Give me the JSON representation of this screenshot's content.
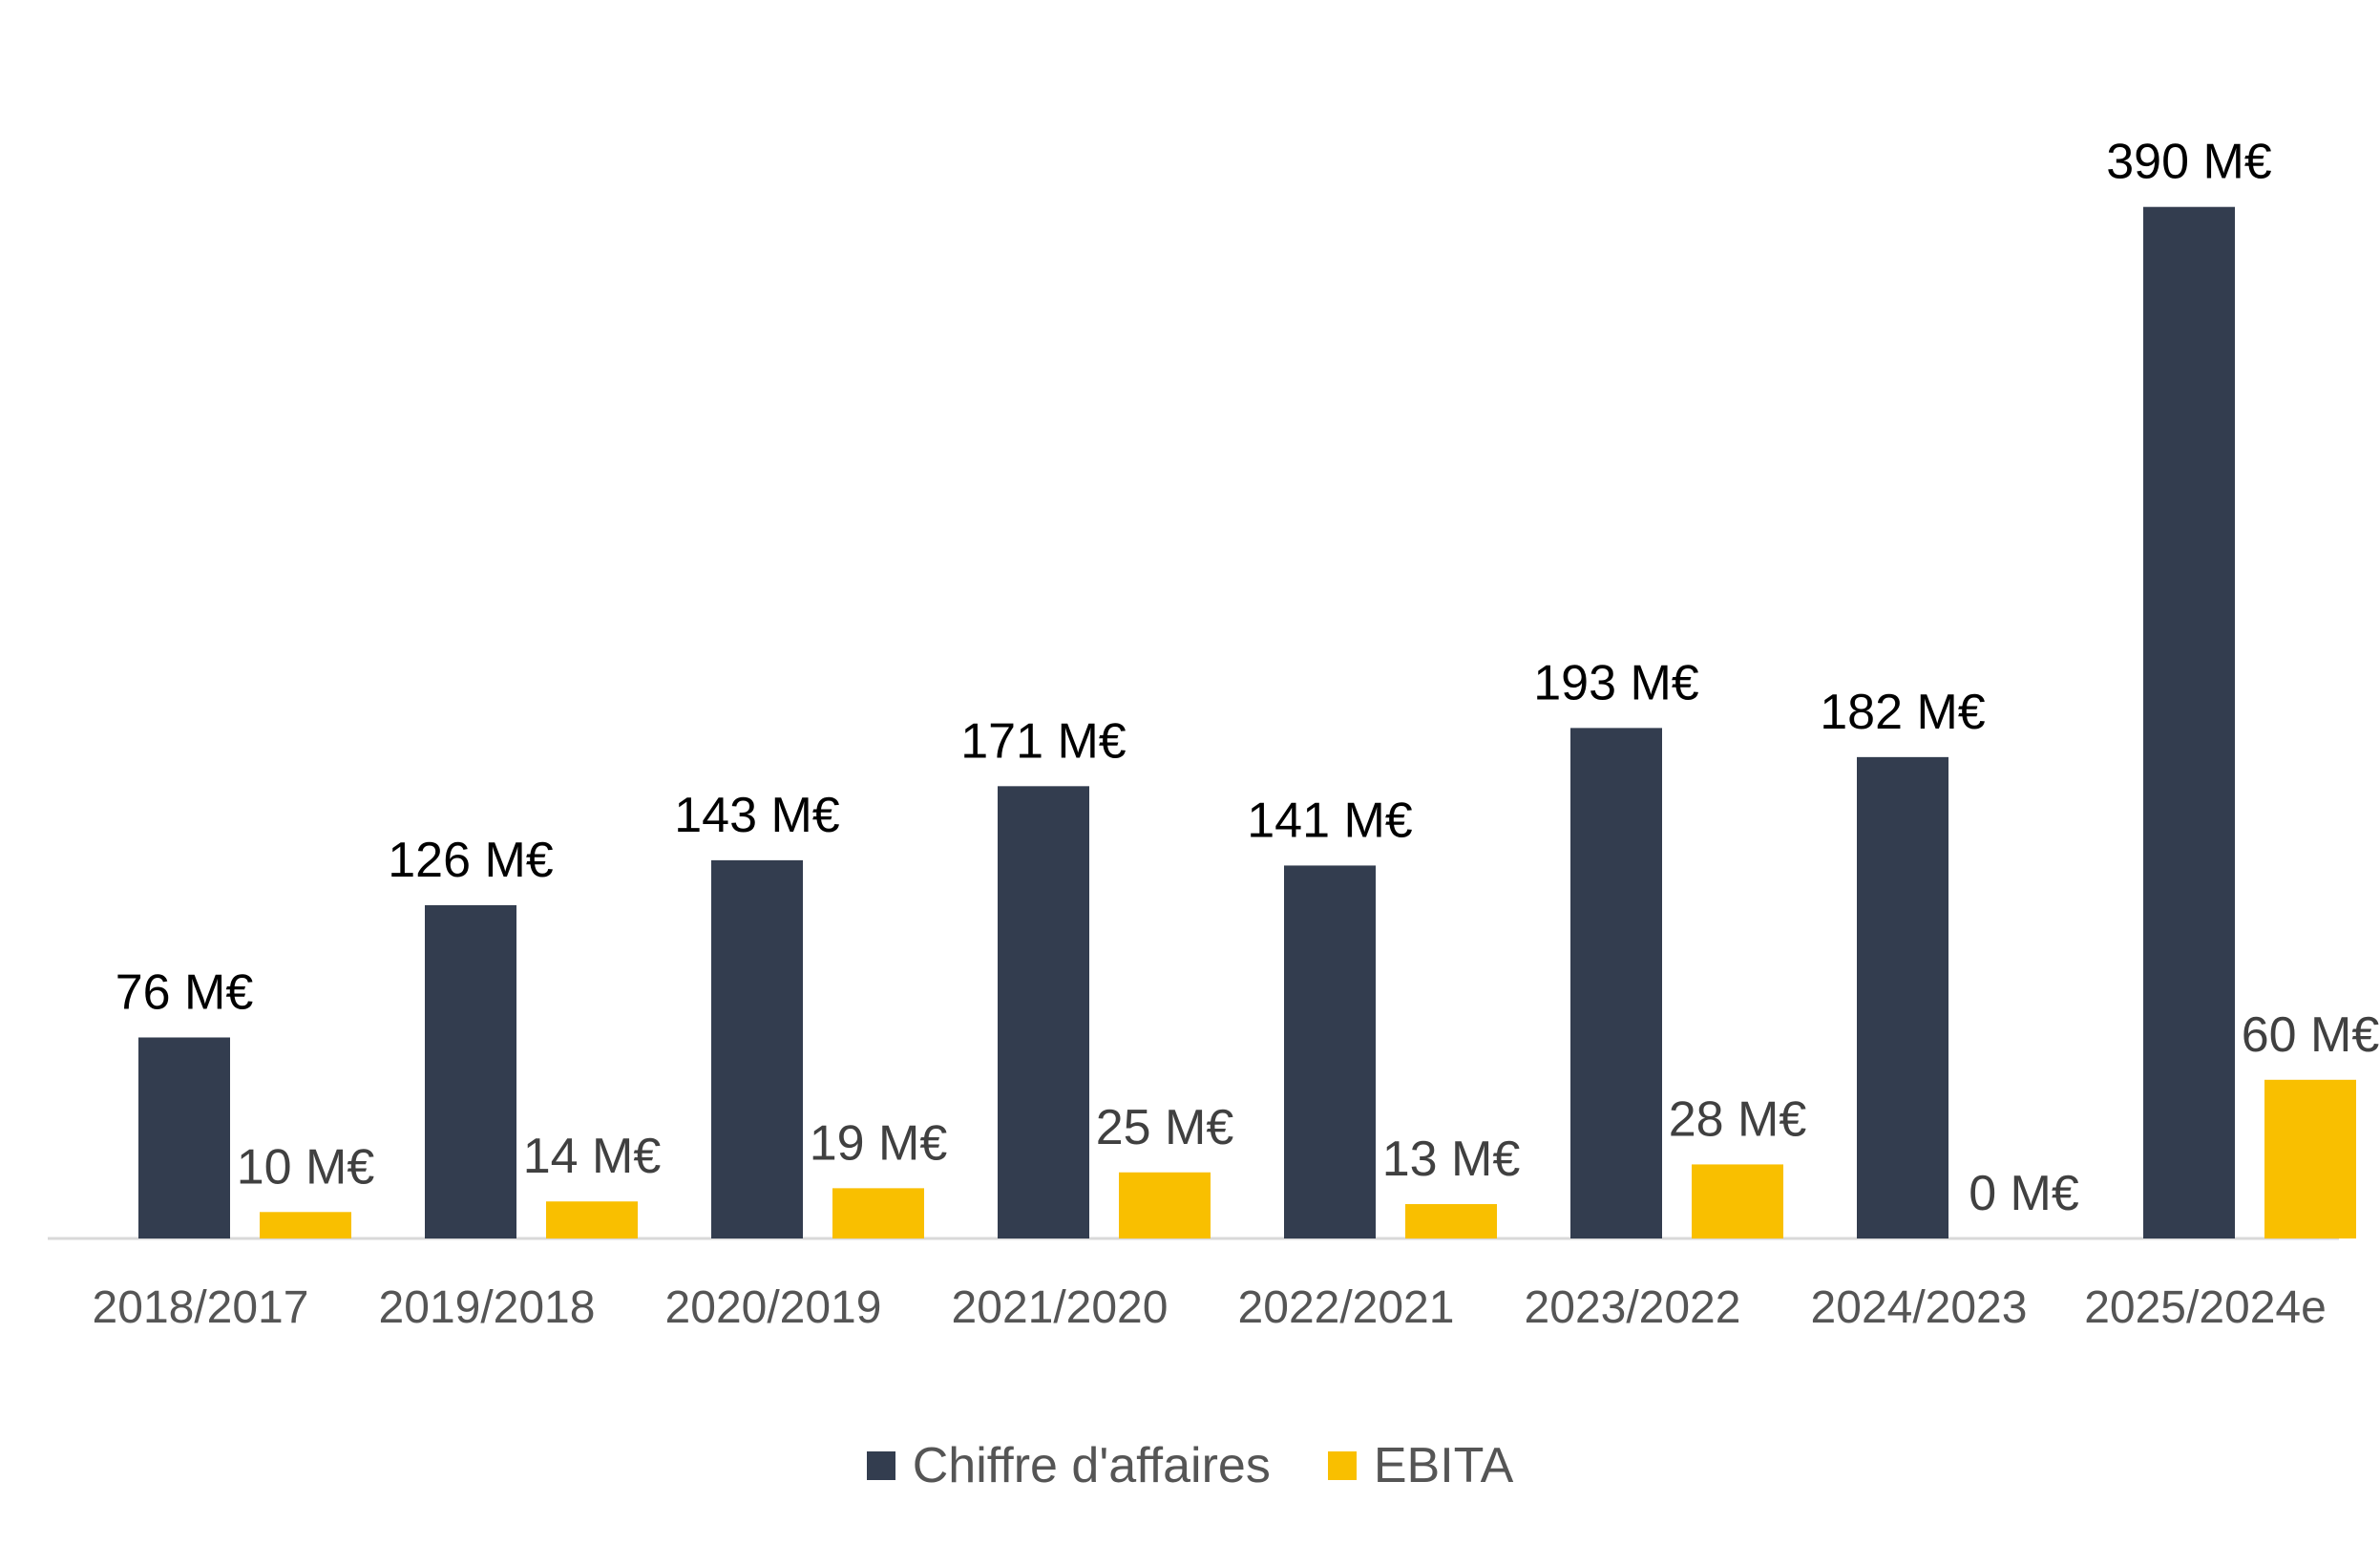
{
  "chart_data": {
    "type": "bar",
    "categories": [
      "2018/2017",
      "2019/2018",
      "2020/2019",
      "2021/2020",
      "2022/2021",
      "2023/2022",
      "2024/2023",
      "2025/2024e"
    ],
    "series": [
      {
        "name": "Chiffre d'affaires",
        "color": "#333d4f",
        "values": [
          76,
          126,
          143,
          171,
          141,
          193,
          182,
          390
        ],
        "labels": [
          "76 M€",
          "126 M€",
          "143 M€",
          "171 M€",
          "141 M€",
          "193 M€",
          "182 M€",
          "390 M€"
        ]
      },
      {
        "name": "EBITA",
        "color": "#f9bf00",
        "values": [
          10,
          14,
          19,
          25,
          13,
          28,
          0,
          60
        ],
        "labels": [
          "10 M€",
          "14 M€",
          "19 M€",
          "25 M€",
          "13 M€",
          "28 M€",
          "0 M€",
          "60 M€"
        ]
      }
    ],
    "ylim": [
      0,
      400
    ],
    "grid": false,
    "legend_position": "bottom",
    "axis_color": "#d9d9d9",
    "tick_label_color": "#555555",
    "revenue_label_color": "#000000",
    "ebita_label_color": "#404040"
  }
}
